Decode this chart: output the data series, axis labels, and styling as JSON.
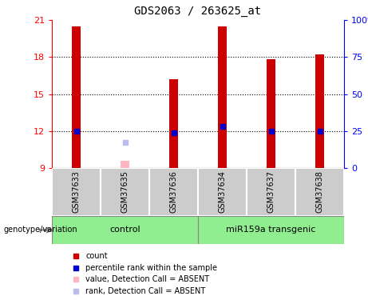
{
  "title": "GDS2063 / 263625_at",
  "samples": [
    "GSM37633",
    "GSM37635",
    "GSM37636",
    "GSM37634",
    "GSM37637",
    "GSM37638"
  ],
  "red_bar_heights": [
    20.5,
    null,
    16.2,
    20.5,
    17.8,
    18.2
  ],
  "pink_bar_heights": [
    null,
    9.6,
    null,
    null,
    null,
    null
  ],
  "blue_sq_values": [
    12.0,
    null,
    11.85,
    12.35,
    12.0,
    12.0
  ],
  "purple_sq_values": [
    null,
    11.1,
    null,
    null,
    null,
    null
  ],
  "ylim": [
    9,
    21
  ],
  "yticks_left": [
    9,
    12,
    15,
    18,
    21
  ],
  "yticks_right": [
    0,
    25,
    50,
    75,
    100
  ],
  "bar_width": 0.18,
  "red_color": "#CC0000",
  "pink_color": "#FFB6C1",
  "blue_color": "#0000CC",
  "purple_color": "#BBBBEE",
  "group_color": "#90EE90",
  "sample_bg": "#CCCCCC",
  "legend_items": [
    {
      "label": "count",
      "color": "#CC0000"
    },
    {
      "label": "percentile rank within the sample",
      "color": "#0000CC"
    },
    {
      "label": "value, Detection Call = ABSENT",
      "color": "#FFB6C1"
    },
    {
      "label": "rank, Detection Call = ABSENT",
      "color": "#BBBBEE"
    }
  ]
}
